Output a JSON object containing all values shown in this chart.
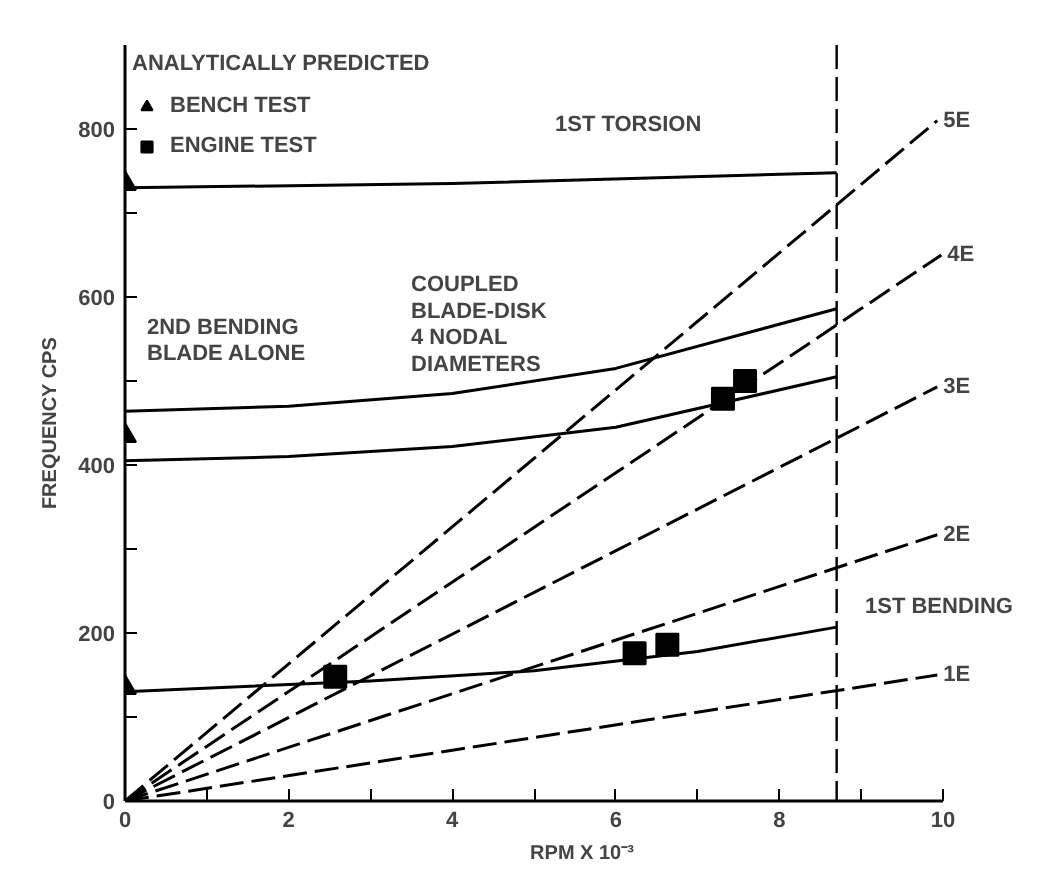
{
  "chart_data": {
    "type": "line",
    "xlabel": "RPM X 10⁻³",
    "ylabel": "FREQUENCY CPS",
    "legend_title": "ANALYTICALLY PREDICTED",
    "xlim": [
      0,
      10
    ],
    "ylim": [
      0,
      900
    ],
    "xticks": [
      0,
      {
        "value": 1,
        "label": null
      },
      2,
      {
        "value": 3,
        "label": null
      },
      4,
      {
        "value": 5,
        "label": null
      },
      6,
      {
        "value": 7,
        "label": null
      },
      8,
      {
        "value": 9,
        "label": null
      },
      10
    ],
    "yticks": [
      0,
      {
        "value": 100,
        "label": null
      },
      200,
      {
        "value": 300,
        "label": null
      },
      400,
      {
        "value": 500,
        "label": null
      },
      600,
      {
        "value": 700,
        "label": null
      },
      800
    ],
    "grid": false,
    "legend": "top left",
    "line_style": "solid",
    "marker": "none",
    "series": [
      {
        "color": "#000000",
        "x": [
          0,
          4,
          8.7
        ],
        "values": [
          730,
          735,
          748
        ]
      },
      {
        "color": "#000000",
        "x": [
          0,
          2,
          4,
          6,
          8.7
        ],
        "values": [
          464,
          470,
          485,
          515,
          586
        ]
      },
      {
        "color": "#000000",
        "x": [
          0,
          2,
          4,
          6,
          8.7
        ],
        "values": [
          405,
          410,
          422,
          445,
          505
        ]
      },
      {
        "color": "#000000",
        "x": [
          0,
          3,
          5,
          7,
          8.7
        ],
        "values": [
          130,
          143,
          155,
          178,
          207
        ]
      },
      {
        "name": "5E",
        "color": "#000000",
        "line_style": "dashed",
        "x": [
          0,
          9.93
        ],
        "values": [
          0,
          810
        ]
      },
      {
        "name": "4E",
        "color": "#000000",
        "line_style": "dashed",
        "x": [
          0,
          9.98
        ],
        "values": [
          0,
          650
        ]
      },
      {
        "name": "3E",
        "color": "#000000",
        "line_style": "dashed",
        "x": [
          0,
          9.93
        ],
        "values": [
          0,
          493
        ]
      },
      {
        "name": "2E",
        "color": "#000000",
        "line_style": "dashed",
        "x": [
          0,
          9.93
        ],
        "values": [
          0,
          317
        ]
      },
      {
        "name": "1E",
        "color": "#000000",
        "line_style": "dashed",
        "x": [
          0,
          9.93
        ],
        "values": [
          0,
          150
        ]
      },
      {
        "name": "BENCH TEST",
        "type": "scatter",
        "marker": "triangle",
        "color": "#000000",
        "x": [
          0,
          0,
          0
        ],
        "values": [
          735,
          435,
          135
        ]
      },
      {
        "name": "ENGINE TEST",
        "type": "scatter",
        "marker": "square",
        "color": "#000000",
        "x": [
          2.57,
          6.23,
          6.63,
          7.31,
          7.58
        ],
        "values": [
          148,
          176,
          186,
          479,
          500
        ]
      }
    ],
    "ref_lines": [
      {
        "axis": "x",
        "value": 8.7,
        "label": null,
        "line_style": "dashed",
        "color": "#000000"
      }
    ],
    "annotations": [
      "1ST TORSION",
      "COUPLED\nBLADE-DISK\n4 NODAL\nDIAMETERS",
      "2ND BENDING\nBLADE ALONE",
      "1ST BENDING"
    ]
  }
}
